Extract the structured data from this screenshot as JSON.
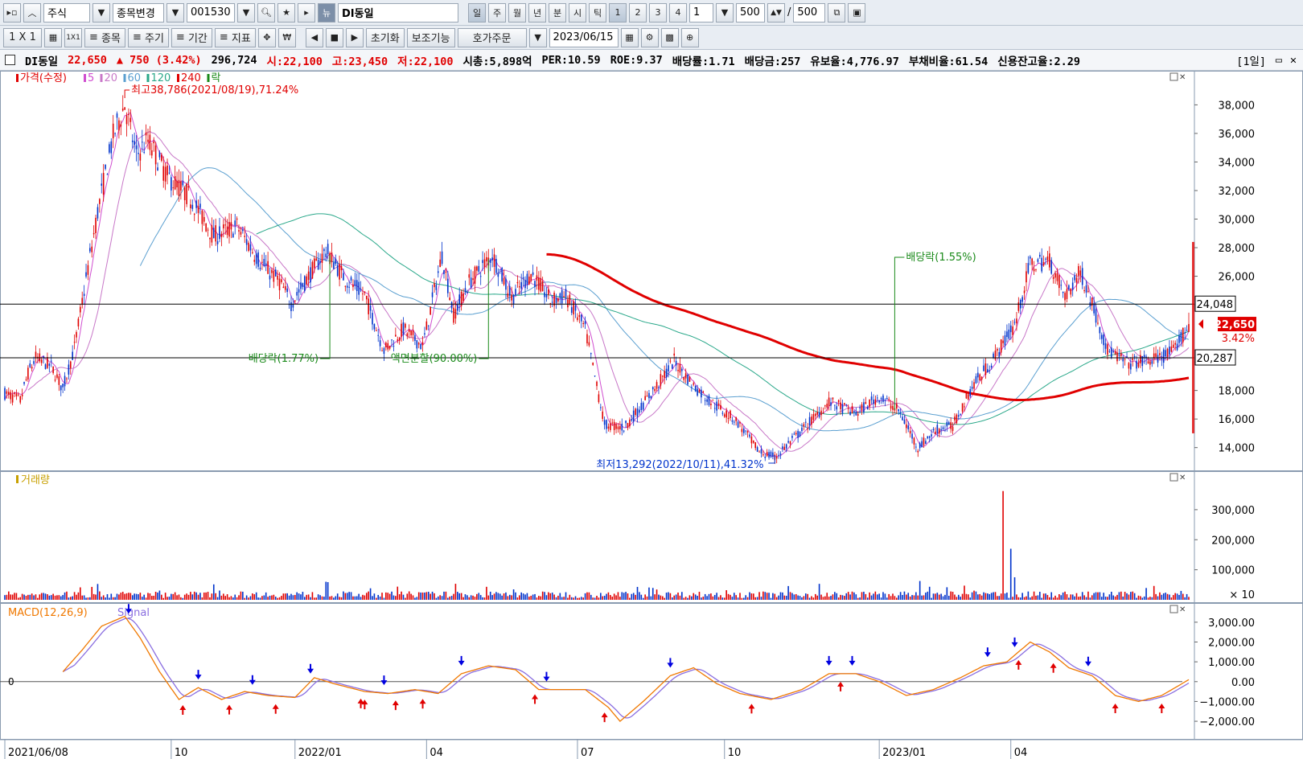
{
  "toolbar1": {
    "market": "주식",
    "change_stock": "종목변경",
    "code": "001530",
    "name_badge": "뉴",
    "name": "DI동일",
    "periods": [
      "일",
      "주",
      "월",
      "년",
      "분",
      "시",
      "틱"
    ],
    "numbers": [
      "1",
      "2",
      "3",
      "4"
    ],
    "interval_value": "1",
    "count_value": "500",
    "count_total": "500",
    "slash": "/"
  },
  "toolbar2": {
    "layout": "1 X 1",
    "layout_sub": "1X1",
    "items_label": "종목",
    "period_label": "주기",
    "range_label": "기간",
    "indicator_label": "지표",
    "reset_label": "초기화",
    "aux_label": "보조기능",
    "order_label": "호가주문",
    "date_value": "2023/06/15"
  },
  "infobar": {
    "name": "DI동일",
    "price": "22,650",
    "change_arrow": "▲",
    "change": "750",
    "change_pct": "(3.42%)",
    "volume": "296,724",
    "open": "시:22,100",
    "high": "고:23,450",
    "low": "저:22,100",
    "mcap": "시총:5,898억",
    "per": "PER:10.59",
    "roe": "ROE:9.37",
    "div_yield": "배당률:1.71",
    "dividend": "배당금:257",
    "reserve": "유보율:4,776.97",
    "debt": "부채비율:61.54",
    "credit": "신용잔고율:2.29",
    "period_tag": "[1일]"
  },
  "chart_data": [
    {
      "type": "candlestick",
      "legend": [
        {
          "label": "가격(수정)",
          "color": "#e00000"
        },
        {
          "label": "5",
          "color": "#d04ed0"
        },
        {
          "label": "20",
          "color": "#c878c8"
        },
        {
          "label": "60",
          "color": "#5a9fd0"
        },
        {
          "label": "120",
          "color": "#2aa88a"
        },
        {
          "label": "240",
          "color": "#e00000"
        },
        {
          "label": "락",
          "color": "#1a8a1a"
        }
      ],
      "ylim": [
        12800,
        39600
      ],
      "yticks": [
        "38,000",
        "36,000",
        "34,000",
        "32,000",
        "30,000",
        "28,000",
        "26,000",
        "",
        "",
        "18,000",
        "16,000",
        "14,000"
      ],
      "ytick_values": [
        38000,
        36000,
        34000,
        32000,
        30000,
        28000,
        26000,
        24000,
        20000,
        18000,
        16000,
        14000
      ],
      "price_anchors": [
        [
          0,
          17800
        ],
        [
          8,
          17300
        ],
        [
          12,
          19200
        ],
        [
          16,
          20300
        ],
        [
          24,
          19700
        ],
        [
          30,
          18100
        ],
        [
          36,
          21000
        ],
        [
          42,
          25800
        ],
        [
          48,
          30500
        ],
        [
          56,
          35800
        ],
        [
          62,
          38000
        ],
        [
          68,
          34500
        ],
        [
          74,
          35500
        ],
        [
          84,
          33000
        ],
        [
          96,
          31500
        ],
        [
          108,
          28800
        ],
        [
          120,
          29500
        ],
        [
          132,
          27000
        ],
        [
          142,
          25600
        ],
        [
          148,
          24100
        ],
        [
          158,
          26200
        ],
        [
          166,
          27800
        ],
        [
          176,
          25800
        ],
        [
          186,
          24700
        ],
        [
          196,
          20800
        ],
        [
          206,
          22300
        ],
        [
          216,
          21100
        ],
        [
          226,
          27500
        ],
        [
          232,
          23300
        ],
        [
          240,
          25600
        ],
        [
          252,
          27500
        ],
        [
          262,
          24500
        ],
        [
          272,
          26200
        ],
        [
          282,
          24300
        ],
        [
          290,
          24600
        ],
        [
          300,
          22300
        ],
        [
          310,
          15600
        ],
        [
          320,
          15400
        ],
        [
          328,
          16700
        ],
        [
          338,
          18500
        ],
        [
          346,
          20100
        ],
        [
          356,
          18300
        ],
        [
          366,
          17100
        ],
        [
          378,
          15900
        ],
        [
          390,
          13700
        ],
        [
          398,
          13300
        ],
        [
          412,
          15200
        ],
        [
          426,
          17200
        ],
        [
          440,
          16400
        ],
        [
          452,
          17600
        ],
        [
          462,
          16600
        ],
        [
          472,
          14000
        ],
        [
          482,
          15300
        ],
        [
          490,
          15500
        ],
        [
          500,
          18300
        ],
        [
          510,
          20000
        ],
        [
          522,
          22600
        ],
        [
          530,
          26800
        ],
        [
          540,
          27100
        ],
        [
          548,
          24600
        ],
        [
          556,
          26300
        ],
        [
          562,
          24100
        ],
        [
          570,
          20800
        ],
        [
          580,
          19900
        ],
        [
          592,
          20100
        ],
        [
          604,
          20700
        ],
        [
          612,
          22650
        ]
      ],
      "levels": [
        {
          "label": "24,048",
          "value": 24048
        },
        {
          "label": "20,287",
          "value": 20287
        }
      ],
      "current_label": "22,650",
      "current_pct": "3.42%",
      "annotations": {
        "high": "최고38,786(2021/08/19),71.24%",
        "low": "최저13,292(2022/10/11),41.32%",
        "events": [
          {
            "label": "배당락(1.77%)",
            "day": 168
          },
          {
            "label": "액면분할(90.00%)",
            "day": 250
          },
          {
            "label": "배당락(1.55%)",
            "day": 460
          }
        ]
      }
    },
    {
      "type": "bar",
      "legend": "거래량",
      "ylim": [
        0,
        380000
      ],
      "yticks": [
        "300,000",
        "200,000",
        "100,000"
      ],
      "ytick_values": [
        300000,
        200000,
        100000
      ],
      "unit": "× 10",
      "spikes": [
        {
          "day": 516,
          "value": 362000
        },
        {
          "day": 520,
          "value": 170000
        },
        {
          "day": 522,
          "value": 75000
        }
      ]
    },
    {
      "type": "line",
      "legend": [
        {
          "label": "MACD(12,26,9)",
          "color": "#f07800"
        },
        {
          "label": "Signal",
          "color": "#8a6ee0"
        }
      ],
      "ylim": [
        -2200,
        3400
      ],
      "yticks": [
        "3,000.00",
        "2,000.00",
        "1,000.00",
        "0.00",
        "−1,000.00",
        "−2,000.00"
      ],
      "ytick_values": [
        3000,
        2000,
        1000,
        0,
        -1000,
        -2000
      ],
      "zero_label": "0",
      "macd_anchors": [
        [
          30,
          500
        ],
        [
          40,
          1600
        ],
        [
          50,
          2800
        ],
        [
          62,
          3300
        ],
        [
          70,
          2200
        ],
        [
          80,
          500
        ],
        [
          90,
          -900
        ],
        [
          100,
          -300
        ],
        [
          112,
          -900
        ],
        [
          124,
          -500
        ],
        [
          136,
          -700
        ],
        [
          150,
          -800
        ],
        [
          160,
          200
        ],
        [
          170,
          -100
        ],
        [
          186,
          -500
        ],
        [
          198,
          -600
        ],
        [
          212,
          -400
        ],
        [
          224,
          -600
        ],
        [
          236,
          400
        ],
        [
          250,
          800
        ],
        [
          264,
          600
        ],
        [
          276,
          -400
        ],
        [
          288,
          -400
        ],
        [
          300,
          -400
        ],
        [
          312,
          -1300
        ],
        [
          318,
          -2000
        ],
        [
          330,
          -1000
        ],
        [
          344,
          300
        ],
        [
          356,
          700
        ],
        [
          368,
          -100
        ],
        [
          380,
          -600
        ],
        [
          396,
          -900
        ],
        [
          412,
          -400
        ],
        [
          426,
          400
        ],
        [
          440,
          400
        ],
        [
          452,
          0
        ],
        [
          466,
          -700
        ],
        [
          480,
          -400
        ],
        [
          494,
          200
        ],
        [
          506,
          800
        ],
        [
          518,
          1000
        ],
        [
          530,
          2000
        ],
        [
          540,
          1500
        ],
        [
          550,
          700
        ],
        [
          562,
          300
        ],
        [
          574,
          -700
        ],
        [
          586,
          -1000
        ],
        [
          598,
          -700
        ],
        [
          612,
          100
        ]
      ],
      "signal_lag": 6,
      "buy_days": [
        92,
        116,
        140,
        184,
        186,
        202,
        216,
        274,
        310,
        386,
        432,
        524,
        542,
        574,
        598
      ],
      "sell_days": [
        64,
        100,
        128,
        158,
        196,
        236,
        280,
        344,
        426,
        438,
        508,
        522,
        560
      ]
    }
  ],
  "xaxis": {
    "labels": [
      "2021/06/08",
      "10",
      "2022/01",
      "04",
      "07",
      "10",
      "2023/01",
      "04"
    ],
    "label_days": [
      0,
      86,
      150,
      218,
      296,
      372,
      452,
      520
    ]
  }
}
